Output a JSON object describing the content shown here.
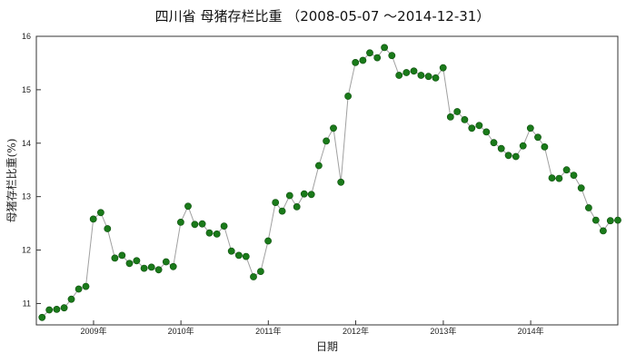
{
  "chart_data": {
    "type": "line",
    "title": "四川省 母猪存栏比重 （2008-05-07 ～2014-12-31）",
    "xlabel": "日期",
    "ylabel": "母猪存栏比重(%)",
    "xlim": [
      "2008-05-07",
      "2014-12-31"
    ],
    "ylim": [
      10.6,
      16
    ],
    "yticks": [
      "11",
      "12",
      "13",
      "14",
      "15",
      "16"
    ],
    "xticks": [
      {
        "date": "2009-01-01",
        "label": "2009年"
      },
      {
        "date": "2010-01-01",
        "label": "2010年"
      },
      {
        "date": "2011-01-01",
        "label": "2011年"
      },
      {
        "date": "2012-01-01",
        "label": "2012年"
      },
      {
        "date": "2013-01-01",
        "label": "2013年"
      },
      {
        "date": "2014-01-01",
        "label": "2014年"
      }
    ],
    "grid": false,
    "line_color": "#a0a0a0",
    "marker_color": "#1a7a1a",
    "series": [
      {
        "x": [
          "2008-05-31",
          "2008-06-30",
          "2008-07-31",
          "2008-08-31",
          "2008-09-30",
          "2008-10-31",
          "2008-11-30",
          "2008-12-31",
          "2009-01-31",
          "2009-02-28",
          "2009-03-31",
          "2009-04-30",
          "2009-05-31",
          "2009-06-30",
          "2009-07-31",
          "2009-08-31",
          "2009-09-30",
          "2009-10-31",
          "2009-11-30",
          "2009-12-31",
          "2010-01-31",
          "2010-02-28",
          "2010-03-31",
          "2010-04-30",
          "2010-05-31",
          "2010-06-30",
          "2010-07-31",
          "2010-08-31",
          "2010-09-30",
          "2010-10-31",
          "2010-11-30",
          "2010-12-31",
          "2011-01-31",
          "2011-02-28",
          "2011-03-31",
          "2011-04-30",
          "2011-05-31",
          "2011-06-30",
          "2011-07-31",
          "2011-08-31",
          "2011-09-30",
          "2011-10-31",
          "2011-11-30",
          "2011-12-31",
          "2012-01-31",
          "2012-02-29",
          "2012-03-31",
          "2012-04-30",
          "2012-05-31",
          "2012-06-30",
          "2012-07-31",
          "2012-08-31",
          "2012-09-30",
          "2012-10-31",
          "2012-11-30",
          "2012-12-31",
          "2013-01-31",
          "2013-02-28",
          "2013-03-31",
          "2013-04-30",
          "2013-05-31",
          "2013-06-30",
          "2013-07-31",
          "2013-08-31",
          "2013-09-30",
          "2013-10-31",
          "2013-11-30",
          "2013-12-31",
          "2014-01-31",
          "2014-02-28",
          "2014-03-31",
          "2014-04-30",
          "2014-05-31",
          "2014-06-30",
          "2014-07-31",
          "2014-08-31",
          "2014-09-30",
          "2014-10-31",
          "2014-11-30",
          "2014-12-31"
        ],
        "y": [
          10.74,
          10.88,
          10.89,
          10.92,
          11.08,
          11.27,
          11.32,
          12.58,
          12.7,
          12.4,
          11.85,
          11.9,
          11.75,
          11.8,
          11.66,
          11.68,
          11.63,
          11.78,
          11.69,
          12.52,
          12.82,
          12.48,
          12.49,
          12.32,
          12.3,
          12.45,
          11.98,
          11.9,
          11.88,
          11.5,
          11.6,
          12.17,
          12.89,
          12.73,
          13.02,
          12.81,
          13.05,
          13.04,
          13.58,
          14.04,
          14.28,
          13.27,
          14.88,
          15.51,
          15.55,
          15.69,
          15.6,
          15.79,
          15.64,
          15.27,
          15.32,
          15.35,
          15.27,
          15.25,
          15.22,
          15.41,
          14.49,
          14.59,
          14.44,
          14.28,
          14.33,
          14.21,
          14.01,
          13.9,
          13.77,
          13.75,
          13.95,
          14.28,
          14.11,
          13.93,
          13.35,
          13.34,
          13.5,
          13.4,
          13.16,
          12.79,
          12.56,
          12.36,
          12.55,
          12.56
        ]
      }
    ]
  }
}
